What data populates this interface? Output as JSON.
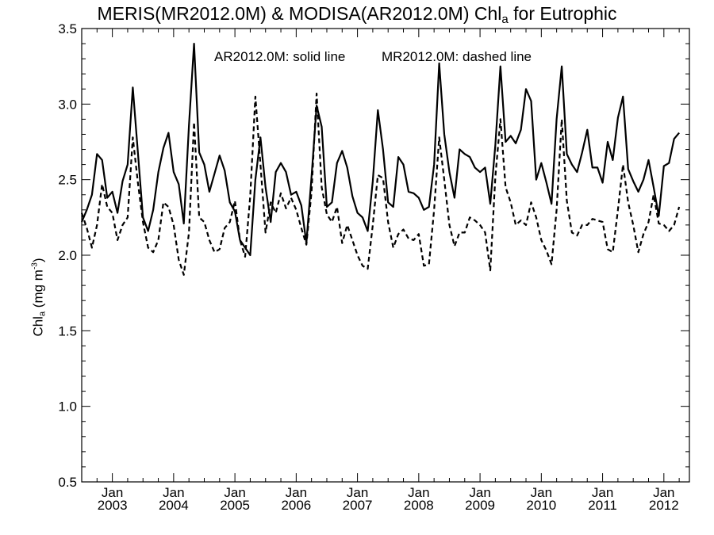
{
  "title": {
    "prefix": "MERIS(MR2012.0M) & MODISA(AR2012.0M)  Chl",
    "subscript": "a",
    "suffix": " for Eutrophic"
  },
  "ylabel": {
    "prefix": "Chl",
    "subscript": "a",
    "middle": " (mg m",
    "superscript": "-3",
    "suffix": ")"
  },
  "legend": {
    "solid": "AR2012.0M: solid line",
    "dashed": "MR2012.0M: dashed line"
  },
  "chart_data": {
    "type": "line",
    "ylim": [
      0.5,
      3.5
    ],
    "xlim": [
      "2002-07",
      "2012-06"
    ],
    "yticks": [
      "0.5",
      "1.0",
      "1.5",
      "2.0",
      "2.5",
      "3.0",
      "3.5"
    ],
    "xticks": [
      {
        "month": "Jan",
        "year": "2003",
        "date": "2003-01"
      },
      {
        "month": "Jan",
        "year": "2004",
        "date": "2004-01"
      },
      {
        "month": "Jan",
        "year": "2005",
        "date": "2005-01"
      },
      {
        "month": "Jan",
        "year": "2006",
        "date": "2006-01"
      },
      {
        "month": "Jan",
        "year": "2007",
        "date": "2007-01"
      },
      {
        "month": "Jan",
        "year": "2008",
        "date": "2008-01"
      },
      {
        "month": "Jan",
        "year": "2009",
        "date": "2009-01"
      },
      {
        "month": "Jan",
        "year": "2010",
        "date": "2010-01"
      },
      {
        "month": "Jan",
        "year": "2011",
        "date": "2011-01"
      },
      {
        "month": "Jan",
        "year": "2012",
        "date": "2012-01"
      }
    ],
    "grid": false,
    "series": [
      {
        "name": "AR2012.0M",
        "style": "solid",
        "color": "#000000",
        "start": "2002-07",
        "values": [
          2.22,
          2.3,
          2.4,
          2.67,
          2.63,
          2.38,
          2.42,
          2.28,
          2.49,
          2.6,
          3.11,
          2.68,
          2.25,
          2.16,
          2.3,
          2.55,
          2.71,
          2.81,
          2.55,
          2.47,
          2.21,
          2.86,
          3.4,
          2.68,
          2.6,
          2.42,
          2.54,
          2.66,
          2.56,
          2.35,
          2.29,
          2.1,
          2.05,
          2.0,
          2.5,
          2.78,
          2.45,
          2.22,
          2.55,
          2.61,
          2.55,
          2.4,
          2.42,
          2.33,
          2.08,
          2.52,
          2.99,
          2.85,
          2.32,
          2.35,
          2.61,
          2.69,
          2.58,
          2.39,
          2.28,
          2.25,
          2.16,
          2.49,
          2.96,
          2.7,
          2.35,
          2.32,
          2.65,
          2.6,
          2.42,
          2.41,
          2.38,
          2.3,
          2.32,
          2.6,
          3.27,
          2.8,
          2.55,
          2.38,
          2.7,
          2.67,
          2.65,
          2.58,
          2.55,
          2.58,
          2.34,
          2.73,
          3.25,
          2.75,
          2.79,
          2.74,
          2.83,
          3.1,
          3.02,
          2.5,
          2.61,
          2.48,
          2.34,
          2.9,
          3.25,
          2.67,
          2.6,
          2.55,
          2.68,
          2.83,
          2.58,
          2.58,
          2.48,
          2.75,
          2.63,
          2.91,
          3.05,
          2.57,
          2.49,
          2.42,
          2.5,
          2.63,
          2.45,
          2.26,
          2.59,
          2.61,
          2.77,
          2.81
        ]
      },
      {
        "name": "MR2012.0M",
        "style": "dashed",
        "color": "#000000",
        "start": "2002-07",
        "values": [
          2.28,
          2.18,
          2.05,
          2.2,
          2.47,
          2.32,
          2.28,
          2.1,
          2.2,
          2.25,
          2.78,
          2.48,
          2.22,
          2.05,
          2.02,
          2.1,
          2.35,
          2.32,
          2.2,
          1.97,
          1.87,
          2.15,
          2.88,
          2.25,
          2.22,
          2.1,
          2.02,
          2.04,
          2.18,
          2.22,
          2.36,
          2.1,
          1.99,
          2.39,
          3.05,
          2.6,
          2.15,
          2.35,
          2.28,
          2.41,
          2.31,
          2.38,
          2.3,
          2.18,
          2.07,
          2.42,
          3.07,
          2.45,
          2.27,
          2.22,
          2.32,
          2.08,
          2.2,
          2.1,
          2.0,
          1.93,
          1.91,
          2.2,
          2.53,
          2.51,
          2.22,
          2.05,
          2.14,
          2.17,
          2.11,
          2.1,
          2.14,
          1.93,
          1.94,
          2.3,
          2.78,
          2.5,
          2.2,
          2.06,
          2.15,
          2.15,
          2.25,
          2.23,
          2.2,
          2.15,
          1.9,
          2.52,
          2.9,
          2.45,
          2.35,
          2.2,
          2.23,
          2.2,
          2.35,
          2.25,
          2.1,
          2.03,
          1.94,
          2.3,
          2.9,
          2.36,
          2.15,
          2.13,
          2.2,
          2.2,
          2.24,
          2.23,
          2.22,
          2.04,
          2.02,
          2.3,
          2.6,
          2.35,
          2.2,
          2.02,
          2.14,
          2.22,
          2.4,
          2.21,
          2.2,
          2.16,
          2.2,
          2.32
        ]
      }
    ]
  }
}
